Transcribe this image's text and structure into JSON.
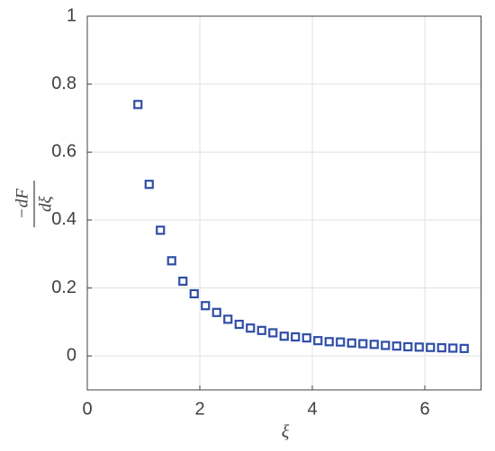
{
  "chart_data": {
    "type": "scatter",
    "x_label": "ξ",
    "y_label_numerator": "−dF",
    "y_label_denominator": "dξ",
    "series": [
      {
        "color": "#2f4ea6",
        "x": [
          0.9,
          1.1,
          1.3,
          1.5,
          1.7,
          1.9,
          2.1,
          2.3,
          2.5,
          2.7,
          2.9,
          3.1,
          3.3,
          3.5,
          3.7,
          3.9,
          4.1,
          4.3,
          4.5,
          4.7,
          4.9,
          5.1,
          5.3,
          5.5,
          5.7,
          5.9,
          6.1,
          6.3,
          6.5,
          6.7
        ],
        "values": [
          0.74,
          0.505,
          0.37,
          0.28,
          0.22,
          0.183,
          0.148,
          0.128,
          0.108,
          0.093,
          0.082,
          0.075,
          0.068,
          0.058,
          0.056,
          0.053,
          0.045,
          0.042,
          0.041,
          0.038,
          0.036,
          0.034,
          0.031,
          0.029,
          0.027,
          0.026,
          0.025,
          0.024,
          0.023,
          0.022
        ]
      }
    ],
    "xlim": [
      0,
      7
    ],
    "xticks": [
      0,
      2,
      4,
      6
    ],
    "ylim": [
      -0.1,
      1
    ],
    "yticks": [
      0,
      0.2,
      0.4,
      0.6,
      0.8,
      1
    ],
    "grid": true
  }
}
